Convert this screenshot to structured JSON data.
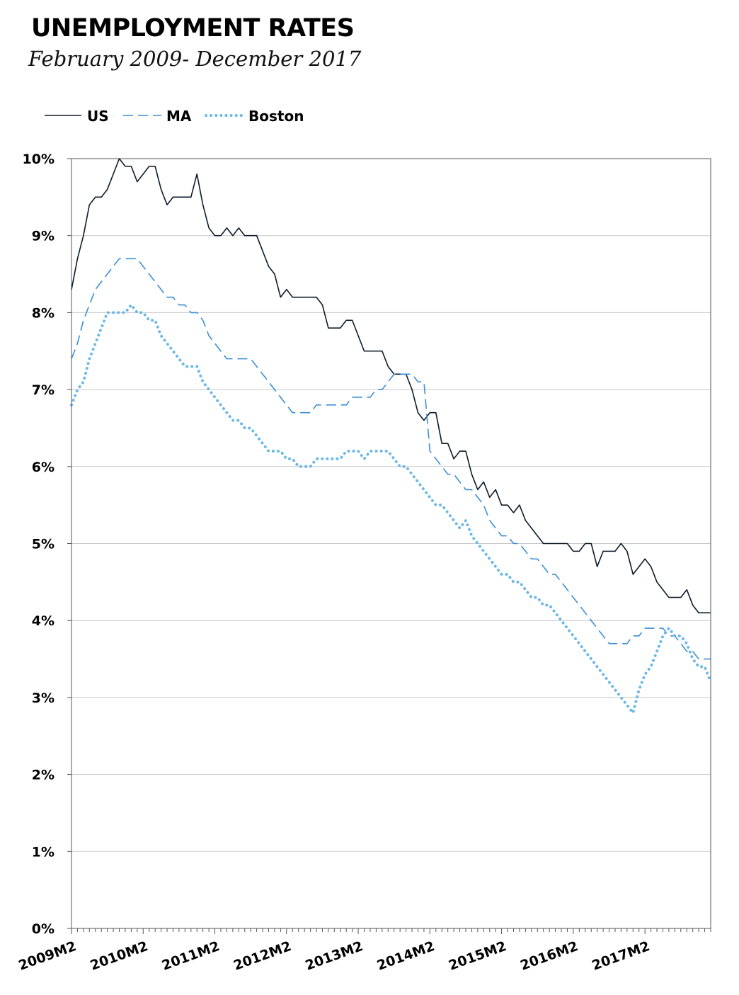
{
  "title": "UNEMPLOYMENT RATES",
  "subtitle": "February 2009- December 2017",
  "chart_data": {
    "type": "line",
    "title": "UNEMPLOYMENT RATES",
    "subtitle": "February 2009- December 2017",
    "xlabel": "",
    "ylabel": "",
    "ylim": [
      0,
      10
    ],
    "y_ticks": [
      "0%",
      "1%",
      "2%",
      "3%",
      "4%",
      "5%",
      "6%",
      "7%",
      "8%",
      "9%",
      "10%"
    ],
    "x_ticks": [
      "2009M2",
      "2010M2",
      "2011M2",
      "2012M2",
      "2013M2",
      "2014M2",
      "2015M2",
      "2016M2",
      "2017M2"
    ],
    "x_start": "2009M2",
    "x_end": "2017M12",
    "grid": true,
    "legend_position": "top-left",
    "series": [
      {
        "name": "US",
        "color": "#0d1b2a",
        "style": "solid",
        "values": [
          8.3,
          8.7,
          9.0,
          9.4,
          9.5,
          9.5,
          9.6,
          9.8,
          10.0,
          9.9,
          9.9,
          9.7,
          9.8,
          9.9,
          9.9,
          9.6,
          9.4,
          9.5,
          9.5,
          9.5,
          9.5,
          9.8,
          9.4,
          9.1,
          9.0,
          9.0,
          9.1,
          9.0,
          9.1,
          9.0,
          9.0,
          9.0,
          8.8,
          8.6,
          8.5,
          8.2,
          8.3,
          8.2,
          8.2,
          8.2,
          8.2,
          8.2,
          8.1,
          7.8,
          7.8,
          7.8,
          7.9,
          7.9,
          7.7,
          7.5,
          7.5,
          7.5,
          7.5,
          7.3,
          7.2,
          7.2,
          7.2,
          7.0,
          6.7,
          6.6,
          6.7,
          6.7,
          6.3,
          6.3,
          6.1,
          6.2,
          6.2,
          5.9,
          5.7,
          5.8,
          5.6,
          5.7,
          5.5,
          5.5,
          5.4,
          5.5,
          5.3,
          5.2,
          5.1,
          5.0,
          5.0,
          5.0,
          5.0,
          5.0,
          4.9,
          4.9,
          5.0,
          5.0,
          4.7,
          4.9,
          4.9,
          4.9,
          5.0,
          4.9,
          4.6,
          4.7,
          4.8,
          4.7,
          4.5,
          4.4,
          4.3,
          4.3,
          4.3,
          4.4,
          4.2,
          4.1,
          4.1,
          4.1
        ]
      },
      {
        "name": "MA",
        "color": "#3a8fd6",
        "style": "dashed",
        "values": [
          7.4,
          7.6,
          7.9,
          8.1,
          8.3,
          8.4,
          8.5,
          8.6,
          8.7,
          8.7,
          8.7,
          8.7,
          8.6,
          8.5,
          8.4,
          8.3,
          8.2,
          8.2,
          8.1,
          8.1,
          8.0,
          8.0,
          7.9,
          7.7,
          7.6,
          7.5,
          7.4,
          7.4,
          7.4,
          7.4,
          7.4,
          7.3,
          7.2,
          7.1,
          7.0,
          6.9,
          6.8,
          6.7,
          6.7,
          6.7,
          6.7,
          6.8,
          6.8,
          6.8,
          6.8,
          6.8,
          6.8,
          6.9,
          6.9,
          6.9,
          6.9,
          7.0,
          7.0,
          7.1,
          7.2,
          7.2,
          7.2,
          7.2,
          7.1,
          7.1,
          6.2,
          6.1,
          6.0,
          5.9,
          5.9,
          5.8,
          5.7,
          5.7,
          5.6,
          5.5,
          5.3,
          5.2,
          5.1,
          5.1,
          5.0,
          5.0,
          4.9,
          4.8,
          4.8,
          4.7,
          4.6,
          4.6,
          4.5,
          4.4,
          4.3,
          4.2,
          4.1,
          4.0,
          3.9,
          3.8,
          3.7,
          3.7,
          3.7,
          3.7,
          3.8,
          3.8,
          3.9,
          3.9,
          3.9,
          3.9,
          3.8,
          3.8,
          3.7,
          3.6,
          3.6,
          3.5,
          3.5,
          3.5
        ]
      },
      {
        "name": "Boston",
        "color": "#6bb8e6",
        "style": "dotted",
        "values": [
          6.8,
          7.0,
          7.1,
          7.4,
          7.6,
          7.8,
          8.0,
          8.0,
          8.0,
          8.0,
          8.1,
          8.0,
          8.0,
          7.9,
          7.9,
          7.7,
          7.6,
          7.5,
          7.4,
          7.3,
          7.3,
          7.3,
          7.1,
          7.0,
          6.9,
          6.8,
          6.7,
          6.6,
          6.6,
          6.5,
          6.5,
          6.4,
          6.3,
          6.2,
          6.2,
          6.2,
          6.1,
          6.1,
          6.0,
          6.0,
          6.0,
          6.1,
          6.1,
          6.1,
          6.1,
          6.1,
          6.2,
          6.2,
          6.2,
          6.1,
          6.2,
          6.2,
          6.2,
          6.2,
          6.1,
          6.0,
          6.0,
          5.9,
          5.8,
          5.7,
          5.6,
          5.5,
          5.5,
          5.4,
          5.3,
          5.2,
          5.3,
          5.1,
          5.0,
          4.9,
          4.8,
          4.7,
          4.6,
          4.6,
          4.5,
          4.5,
          4.4,
          4.3,
          4.3,
          4.2,
          4.2,
          4.1,
          4.0,
          3.9,
          3.8,
          3.7,
          3.6,
          3.5,
          3.4,
          3.3,
          3.2,
          3.1,
          3.0,
          2.9,
          2.8,
          3.1,
          3.3,
          3.4,
          3.6,
          3.8,
          3.9,
          3.8,
          3.8,
          3.7,
          3.5,
          3.4,
          3.4,
          3.2
        ]
      }
    ]
  }
}
